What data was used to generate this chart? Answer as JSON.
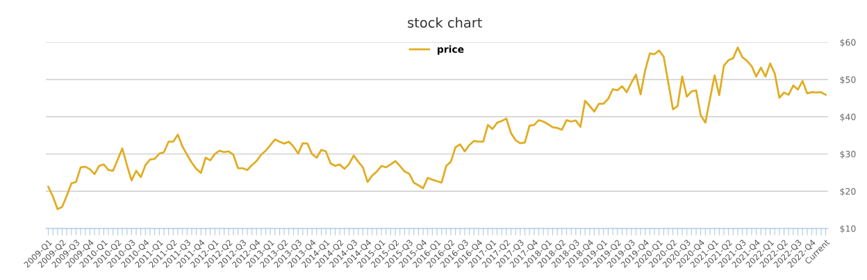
{
  "chart_data": {
    "type": "line",
    "title": "stock chart",
    "categories": [
      "2009-Q1",
      null,
      null,
      "2009-Q2",
      null,
      null,
      "2009-Q3",
      null,
      null,
      "2009-Q4",
      null,
      null,
      "2010-Q1",
      null,
      null,
      "2010-Q2",
      null,
      null,
      "2010-Q3",
      null,
      null,
      "2010-Q4",
      null,
      null,
      "2011-Q1",
      null,
      null,
      "2011-Q2",
      null,
      null,
      "2011-Q3",
      null,
      null,
      "2011-Q4",
      null,
      null,
      "2012-Q1",
      null,
      null,
      "2012-Q2",
      null,
      null,
      "2012-Q3",
      null,
      null,
      "2012-Q4",
      null,
      null,
      "2013-Q1",
      null,
      null,
      "2013-Q2",
      null,
      null,
      "2013-Q3",
      null,
      null,
      "2013-Q4",
      null,
      null,
      "2014-Q1",
      null,
      null,
      "2014-Q2",
      null,
      null,
      "2014-Q3",
      null,
      null,
      "2014-Q4",
      null,
      null,
      "2015-Q1",
      null,
      null,
      "2015-Q2",
      null,
      null,
      "2015-Q3",
      null,
      null,
      "2015-Q4",
      null,
      null,
      "2016-Q1",
      null,
      null,
      "2016-Q2",
      null,
      null,
      "2016-Q3",
      null,
      null,
      "2016-Q4",
      null,
      null,
      "2017-Q1",
      null,
      null,
      "2017-Q2",
      null,
      null,
      "2017-Q3",
      null,
      null,
      "2017-Q4",
      null,
      null,
      "2018-Q1",
      null,
      null,
      "2018-Q2",
      null,
      null,
      "2018-Q3",
      null,
      null,
      "2018-Q4",
      null,
      null,
      "2019-Q1",
      null,
      null,
      "2019-Q2",
      null,
      null,
      "2019-Q3",
      null,
      null,
      "2019-Q4",
      null,
      null,
      "2020-Q1",
      null,
      null,
      "2020-Q2",
      null,
      null,
      "2020-Q3",
      null,
      null,
      "2020-Q4",
      null,
      null,
      "2021-Q1",
      null,
      null,
      "2021-Q2",
      null,
      null,
      "2021-Q3",
      null,
      null,
      "2021-Q4",
      null,
      null,
      "2022-Q1",
      null,
      null,
      "2022-Q2",
      null,
      null,
      "2022-Q3",
      null,
      null,
      "2022-Q4",
      null,
      null,
      "Current"
    ],
    "series": [
      {
        "name": "price",
        "color": "#e0ad22",
        "values": [
          21.2,
          18.6,
          15.2,
          15.8,
          18.8,
          22.1,
          22.5,
          26.4,
          26.6,
          25.9,
          24.6,
          26.8,
          27.2,
          25.7,
          25.5,
          28.5,
          31.5,
          27.0,
          22.9,
          25.5,
          23.8,
          27.0,
          28.5,
          28.7,
          30.1,
          30.5,
          33.3,
          33.3,
          35.2,
          32.0,
          29.8,
          27.7,
          26.0,
          24.9,
          29.0,
          28.3,
          30.0,
          30.9,
          30.5,
          30.7,
          29.8,
          26.2,
          26.2,
          25.7,
          27.0,
          28.1,
          29.8,
          30.9,
          32.4,
          33.9,
          33.3,
          32.8,
          33.3,
          32.0,
          30.1,
          32.9,
          32.8,
          30.0,
          29.0,
          31.1,
          30.7,
          27.5,
          26.8,
          27.2,
          26.0,
          27.3,
          29.6,
          27.9,
          26.4,
          22.5,
          24.2,
          25.3,
          26.8,
          26.4,
          27.2,
          28.1,
          26.8,
          25.3,
          24.7,
          22.3,
          21.6,
          20.8,
          23.6,
          23.1,
          22.7,
          22.3,
          26.8,
          27.9,
          31.8,
          32.6,
          30.7,
          32.4,
          33.5,
          33.3,
          33.3,
          37.8,
          36.7,
          38.4,
          38.9,
          39.5,
          35.6,
          33.7,
          32.9,
          33.1,
          37.6,
          37.8,
          39.1,
          38.7,
          38.0,
          37.2,
          37.0,
          36.5,
          39.1,
          38.7,
          39.0,
          37.3,
          44.3,
          42.9,
          41.4,
          43.5,
          43.5,
          44.8,
          47.4,
          47.1,
          48.2,
          46.6,
          49.1,
          51.3,
          46.0,
          52.5,
          57.0,
          56.8,
          57.8,
          56.1,
          49.1,
          42.0,
          42.9,
          50.8,
          45.4,
          46.8,
          47.1,
          40.4,
          38.4,
          44.8,
          51.1,
          45.8,
          53.7,
          55.2,
          55.7,
          58.6,
          56.0,
          55.0,
          53.6,
          50.8,
          53.2,
          50.8,
          54.3,
          51.6,
          45.1,
          46.5,
          45.9,
          48.4,
          47.3,
          49.6,
          46.3,
          46.6,
          46.5,
          46.6,
          45.9
        ]
      }
    ],
    "ylim": [
      10,
      60
    ],
    "yticks": [
      {
        "value": 10,
        "label": "$10"
      },
      {
        "value": 20,
        "label": "$20"
      },
      {
        "value": 30,
        "label": "$30"
      },
      {
        "value": 40,
        "label": "$40"
      },
      {
        "value": 50,
        "label": "$50"
      },
      {
        "value": 60,
        "label": "$60"
      }
    ],
    "grid": "y",
    "legend": "top"
  }
}
